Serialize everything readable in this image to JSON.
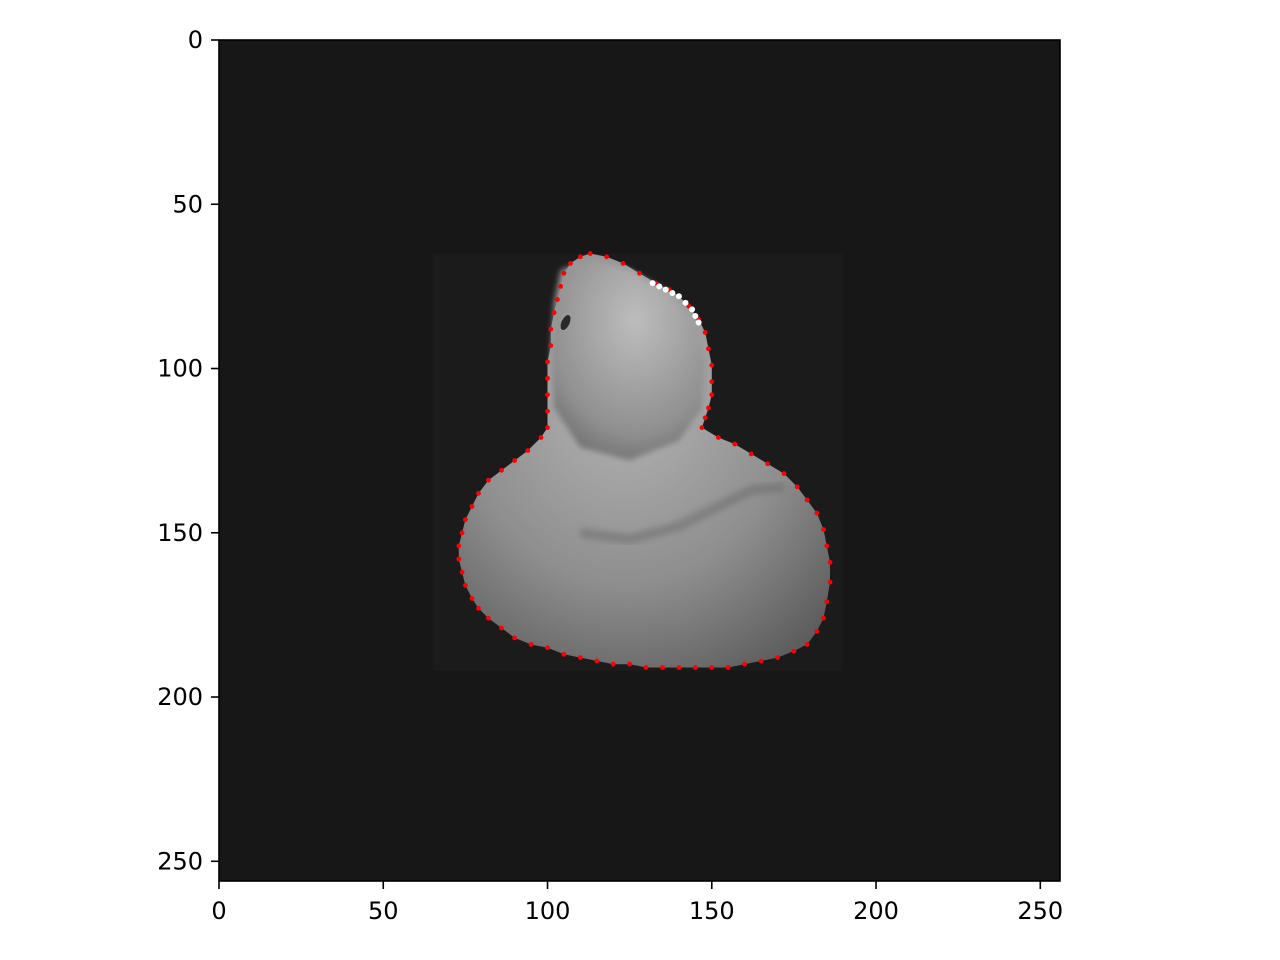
{
  "chart_data": {
    "type": "image",
    "title": "",
    "xlabel": "",
    "ylabel": "",
    "xlim": [
      0,
      256
    ],
    "ylim": [
      256,
      0
    ],
    "x_ticks": [
      0,
      50,
      100,
      150,
      200,
      250
    ],
    "y_ticks": [
      0,
      50,
      100,
      150,
      200,
      250
    ],
    "x_tick_labels": [
      "0",
      "50",
      "100",
      "150",
      "200",
      "250"
    ],
    "y_tick_labels": [
      "0",
      "50",
      "100",
      "150",
      "200",
      "250"
    ],
    "grid": false,
    "colors": {
      "background": "#171717",
      "contour_points": "#ff0000",
      "object": "#9a9a9a",
      "highlight": "#ffffff"
    },
    "image_content": "grayscale-rubber-duck",
    "contour_points": {
      "x": [
        113,
        118,
        123,
        128,
        133,
        137,
        140,
        143,
        146,
        148,
        149,
        150,
        150,
        150,
        149,
        148,
        147,
        152,
        157,
        162,
        167,
        172,
        176,
        179,
        182,
        184,
        185,
        186,
        186,
        185,
        184,
        182,
        179,
        175,
        170,
        165,
        160,
        155,
        150,
        145,
        140,
        135,
        130,
        125,
        120,
        115,
        110,
        105,
        100,
        95,
        90,
        86,
        82,
        79,
        77,
        75,
        74,
        73,
        73,
        74,
        75,
        77,
        79,
        82,
        86,
        90,
        94,
        98,
        100,
        100,
        100,
        100,
        100,
        101,
        101,
        102,
        103,
        104,
        105,
        107,
        110
      ],
      "y": [
        65,
        66,
        68,
        71,
        74,
        76,
        78,
        81,
        85,
        89,
        94,
        99,
        104,
        108,
        112,
        115,
        118,
        121,
        123,
        126,
        129,
        132,
        136,
        140,
        144,
        149,
        154,
        159,
        165,
        171,
        176,
        180,
        184,
        186,
        188,
        189,
        190,
        191,
        191,
        191,
        191,
        191,
        191,
        190,
        190,
        189,
        188,
        187,
        185,
        184,
        182,
        179,
        176,
        173,
        170,
        166,
        162,
        158,
        154,
        150,
        146,
        142,
        138,
        134,
        131,
        128,
        125,
        121,
        118,
        113,
        108,
        103,
        98,
        93,
        88,
        83,
        79,
        75,
        71,
        68,
        66
      ]
    },
    "highlight_points": {
      "x": [
        132,
        134,
        136,
        138,
        140,
        142,
        144,
        145,
        146
      ],
      "y": [
        74,
        75,
        76,
        77,
        78,
        80,
        82,
        84,
        86
      ]
    }
  }
}
